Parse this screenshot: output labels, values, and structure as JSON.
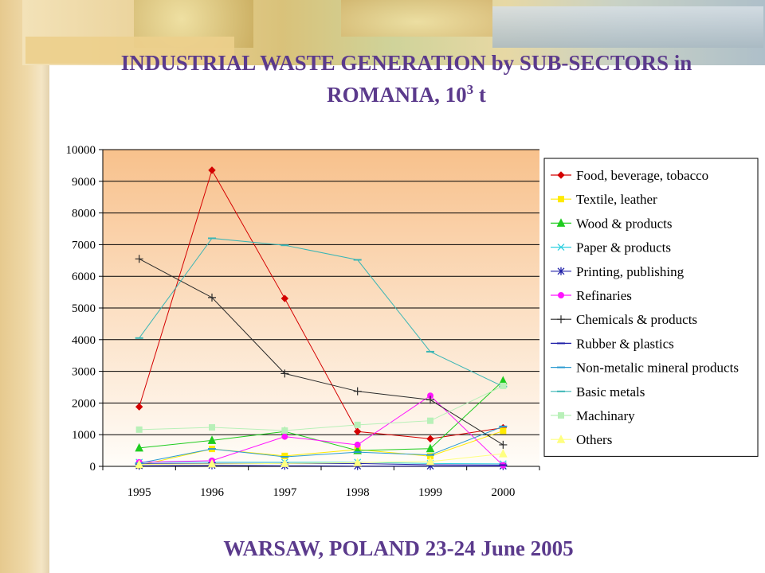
{
  "title": "INDUSTRIAL WASTE GENERATION by SUB-SECTORS in ROMANIA, 10³ t",
  "title_line1": "INDUSTRIAL WASTE GENERATION by SUB-SECTORS in",
  "title_line2": "ROMANIA, 10",
  "title_sup": "3",
  "title_unit": " t",
  "footer": "WARSAW, POLAND 23-24 June 2005",
  "chart_data": {
    "type": "line",
    "title": "",
    "xlabel": "",
    "ylabel": "",
    "x": [
      "1995",
      "1996",
      "1997",
      "1998",
      "1999",
      "2000"
    ],
    "ylim": [
      0,
      10000
    ],
    "yticks": [
      "0",
      "1000",
      "2000",
      "3000",
      "4000",
      "5000",
      "6000",
      "7000",
      "8000",
      "9000",
      "10000"
    ],
    "grid": "horizontal",
    "legend": "right",
    "series": [
      {
        "name": "Food, beverage, tobacco",
        "color": "#d40000",
        "marker": "diamond",
        "values": [
          1880,
          9350,
          5300,
          1100,
          870,
          1220
        ]
      },
      {
        "name": "Textile, leather",
        "color": "#ffea00",
        "marker": "square",
        "values": [
          30,
          550,
          330,
          530,
          320,
          1120
        ]
      },
      {
        "name": "Wood & products",
        "color": "#1fcc1f",
        "marker": "triangle",
        "values": [
          580,
          820,
          1100,
          500,
          560,
          2700
        ]
      },
      {
        "name": "Paper & products",
        "color": "#2fd0e0",
        "marker": "x",
        "values": [
          130,
          130,
          130,
          130,
          90,
          80
        ]
      },
      {
        "name": "Printing, publishing",
        "color": "#1f1fa8",
        "marker": "star",
        "values": [
          20,
          30,
          20,
          10,
          10,
          10
        ]
      },
      {
        "name": "Refinaries",
        "color": "#ff14ff",
        "marker": "circle",
        "values": [
          130,
          180,
          940,
          680,
          2230,
          30
        ]
      },
      {
        "name": "Chemicals & products",
        "color": "#2a2a2a",
        "marker": "plus",
        "values": [
          6550,
          5330,
          2930,
          2370,
          2100,
          680
        ]
      },
      {
        "name": "Rubber & plastics",
        "color": "#1f1fa8",
        "marker": "dash",
        "values": [
          80,
          90,
          90,
          90,
          50,
          40
        ]
      },
      {
        "name": "Non-metalic mineral products",
        "color": "#2a9ad0",
        "marker": "dash",
        "values": [
          100,
          550,
          300,
          450,
          360,
          1260
        ]
      },
      {
        "name": "Basic metals",
        "color": "#3ab5b5",
        "marker": "dash",
        "values": [
          4050,
          7200,
          6980,
          6520,
          3620,
          2520
        ]
      },
      {
        "name": "Machinary",
        "color": "#b8f0b8",
        "marker": "square",
        "values": [
          1160,
          1230,
          1130,
          1310,
          1440,
          2540
        ]
      },
      {
        "name": "Others",
        "color": "#ffff80",
        "marker": "triangle",
        "values": [
          60,
          80,
          90,
          120,
          150,
          400
        ]
      }
    ]
  }
}
